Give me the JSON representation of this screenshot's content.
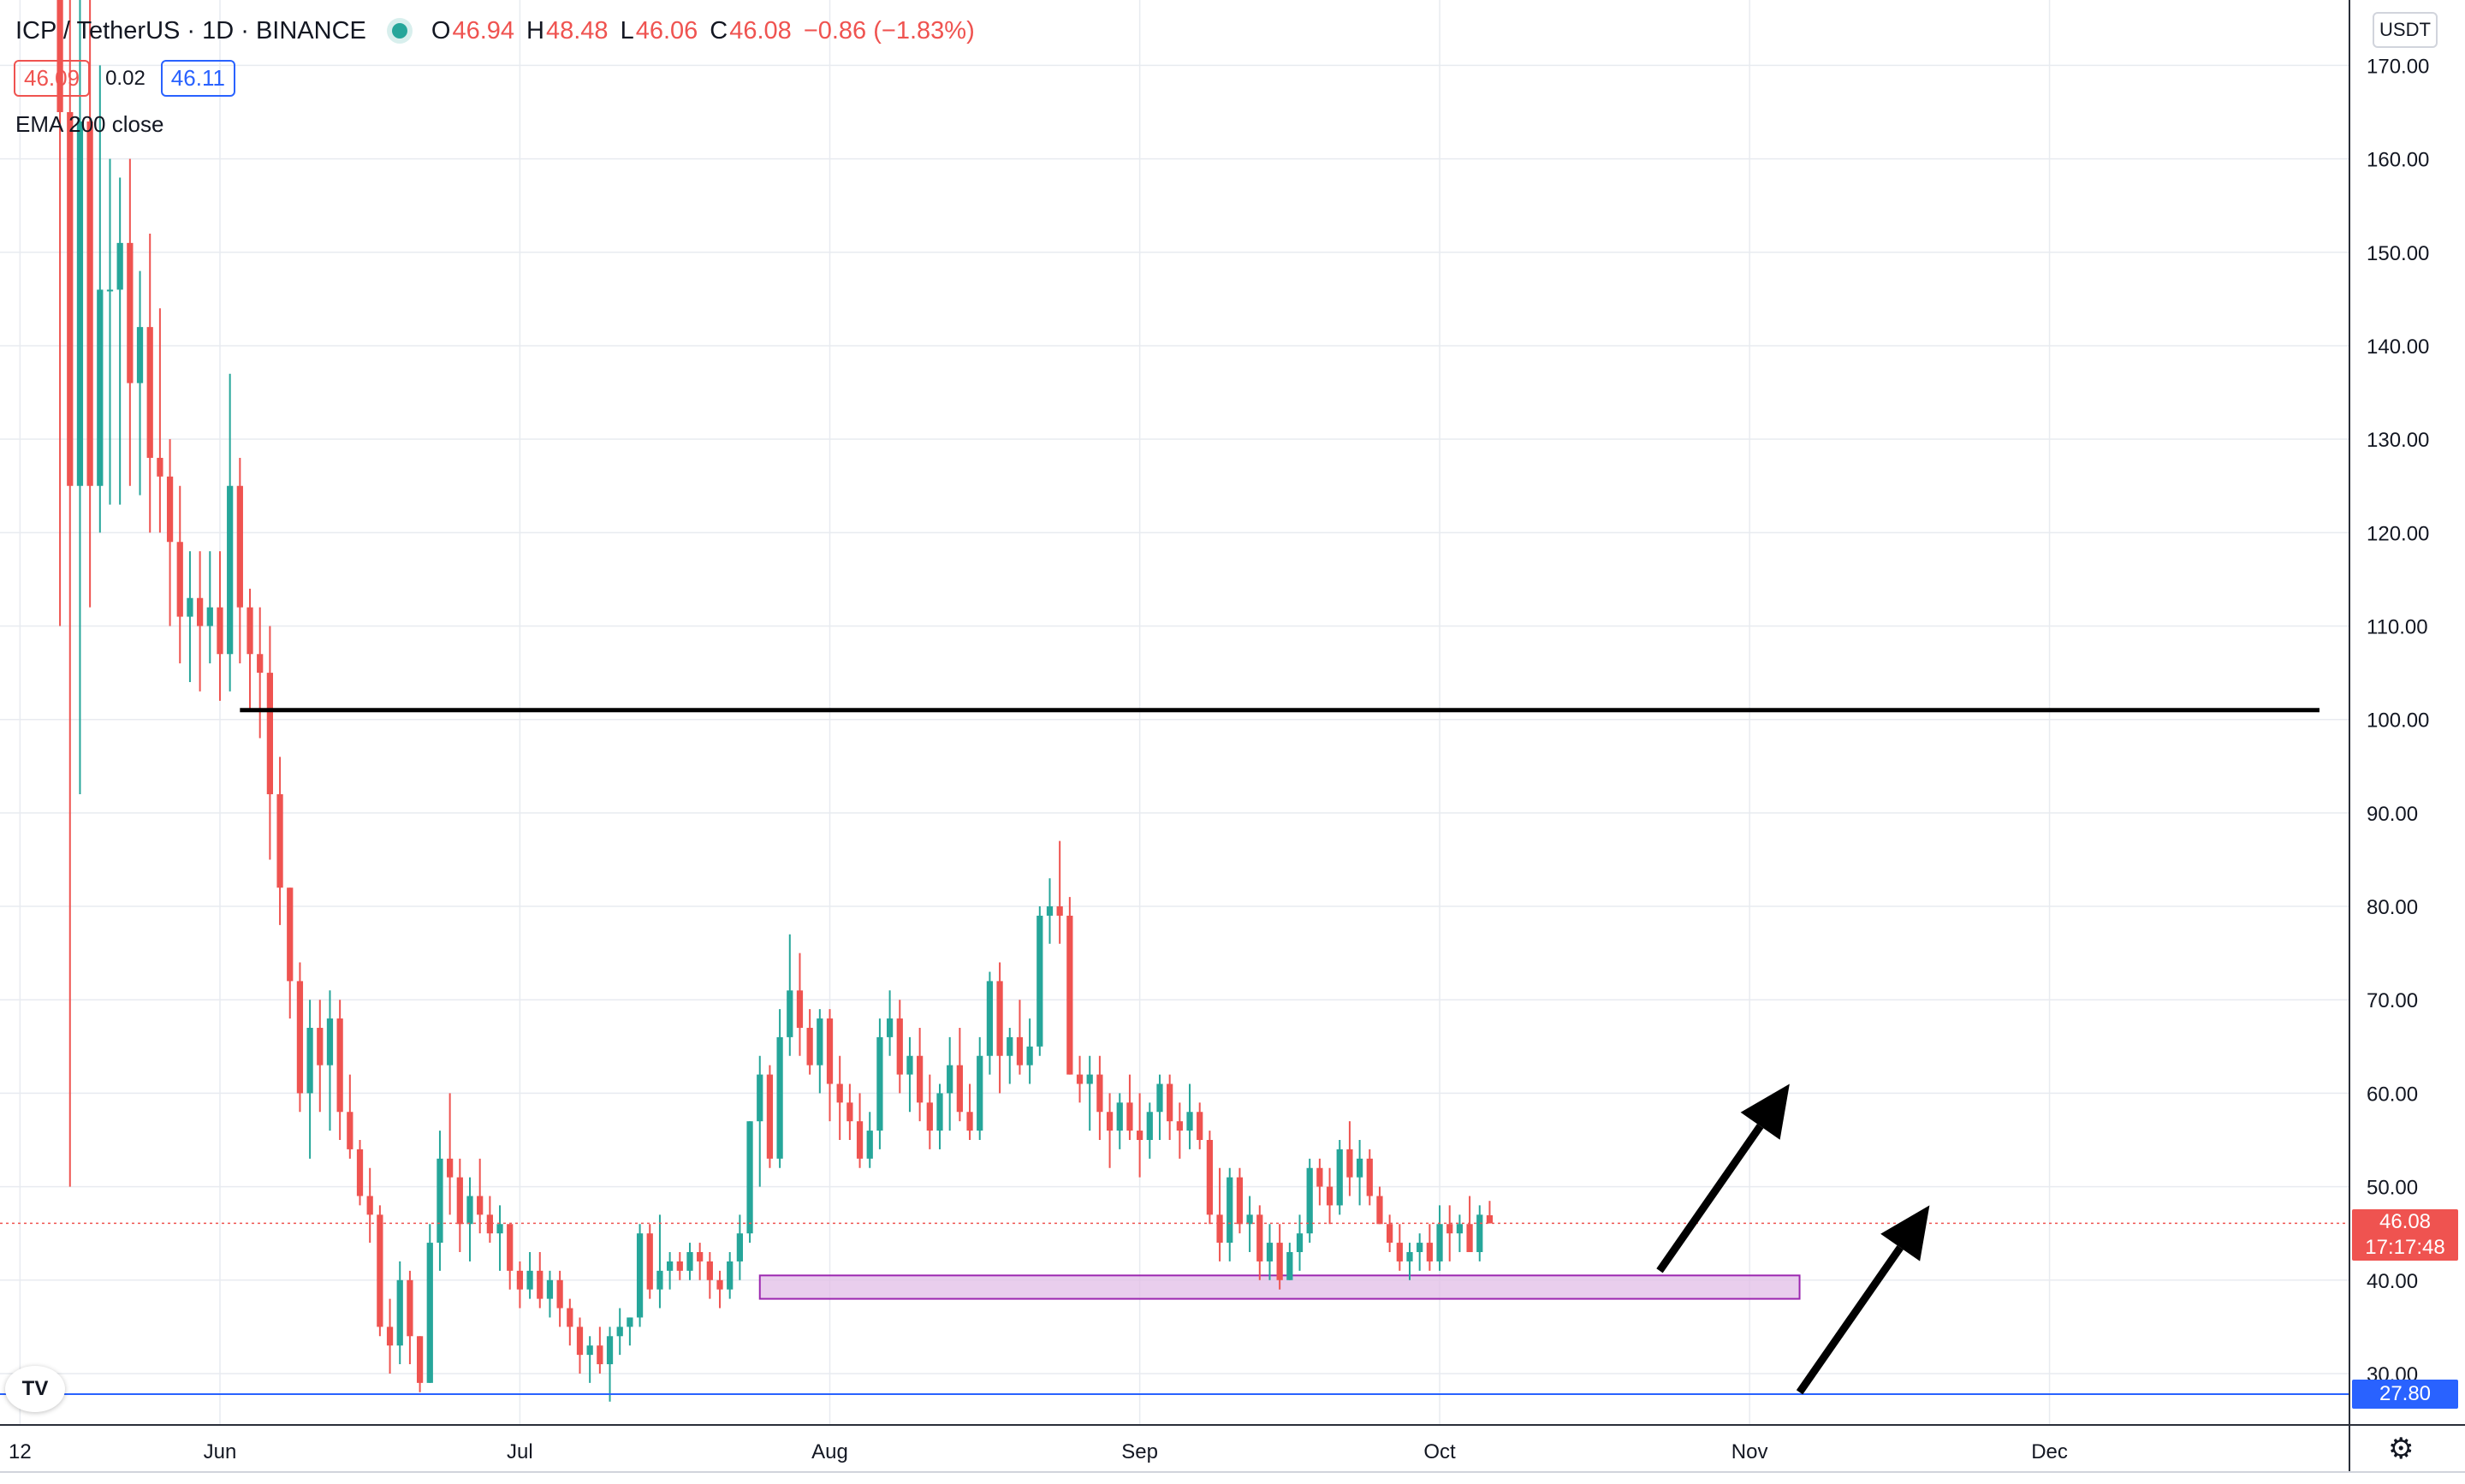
{
  "header": {
    "symbol": "ICP / TetherUS · 1D · BINANCE",
    "status_color": "#26a69a",
    "ohlc": {
      "o_label": "O",
      "o_value": "46.94",
      "h_label": "H",
      "h_value": "48.48",
      "l_label": "L",
      "l_value": "46.06",
      "c_label": "C",
      "c_value": "46.08",
      "change": "−0.86 (−1.83%)"
    },
    "bid": "46.09",
    "spread": "0.02",
    "ask": "46.11",
    "indicator": "EMA 200 close"
  },
  "currency_button": "USDT",
  "price_tag": {
    "price": "46.08",
    "countdown": "17:17:48"
  },
  "level_tag": "27.80",
  "logo_text": "TV",
  "settings_icon": "gear-icon",
  "colors": {
    "up": "#26a69a",
    "down": "#ef5350",
    "line": "#2962ff",
    "zone_fill": "#e1bee7",
    "zone_border": "#9c27b0",
    "annotation": "#000000"
  },
  "chart_data": {
    "type": "candlestick",
    "y_axis": {
      "min": 24.5,
      "max": 177,
      "ticks": [
        30,
        40,
        50,
        60,
        70,
        80,
        90,
        100,
        110,
        120,
        130,
        140,
        150,
        160,
        170
      ],
      "tick_labels": [
        "30.00",
        "40.00",
        "50.00",
        "60.00",
        "70.00",
        "80.00",
        "90.00",
        "100.00",
        "110.00",
        "120.00",
        "130.00",
        "140.00",
        "150.00",
        "160.00",
        "170.00"
      ]
    },
    "x_axis": {
      "start": "2021-05-10",
      "end": "2021-12-31",
      "labels": [
        {
          "date": "2021-05-12",
          "text": "12"
        },
        {
          "date": "2021-06-01",
          "text": "Jun"
        },
        {
          "date": "2021-07-01",
          "text": "Jul"
        },
        {
          "date": "2021-08-01",
          "text": "Aug"
        },
        {
          "date": "2021-09-01",
          "text": "Sep"
        },
        {
          "date": "2021-10-01",
          "text": "Oct"
        },
        {
          "date": "2021-11-01",
          "text": "Nov"
        },
        {
          "date": "2021-12-01",
          "text": "Dec"
        }
      ]
    },
    "first_candle_date": "2021-05-16",
    "candles": [
      [
        180,
        230,
        110,
        165
      ],
      [
        165,
        230,
        50,
        125
      ],
      [
        125,
        225,
        92,
        164
      ],
      [
        164,
        215,
        112,
        125
      ],
      [
        125,
        170,
        120,
        146
      ],
      [
        146,
        160,
        123,
        146
      ],
      [
        146,
        158,
        123,
        151
      ],
      [
        151,
        160,
        125,
        136
      ],
      [
        136,
        148,
        124,
        142
      ],
      [
        142,
        152,
        120,
        128
      ],
      [
        128,
        144,
        120,
        126
      ],
      [
        126,
        130,
        110,
        119
      ],
      [
        119,
        125,
        106,
        111
      ],
      [
        111,
        118,
        104,
        113
      ],
      [
        113,
        118,
        103,
        110
      ],
      [
        110,
        118,
        106,
        112
      ],
      [
        112,
        118,
        102,
        107
      ],
      [
        107,
        137,
        103,
        125
      ],
      [
        125,
        128,
        106,
        112
      ],
      [
        112,
        114,
        101,
        107
      ],
      [
        107,
        112,
        98,
        105
      ],
      [
        105,
        110,
        85,
        92
      ],
      [
        92,
        96,
        78,
        82
      ],
      [
        82,
        82,
        68,
        72
      ],
      [
        72,
        74,
        58,
        60
      ],
      [
        60,
        70,
        53,
        67
      ],
      [
        67,
        70,
        58,
        63
      ],
      [
        63,
        71,
        56,
        68
      ],
      [
        68,
        70,
        55,
        58
      ],
      [
        58,
        62,
        53,
        54
      ],
      [
        54,
        55,
        48,
        49
      ],
      [
        49,
        52,
        44,
        47
      ],
      [
        47,
        48,
        34,
        35
      ],
      [
        35,
        38,
        30,
        33
      ],
      [
        33,
        42,
        31,
        40
      ],
      [
        40,
        41,
        31,
        34
      ],
      [
        34,
        34,
        28,
        29
      ],
      [
        29,
        46,
        29,
        44
      ],
      [
        44,
        56,
        41,
        53
      ],
      [
        53,
        60,
        47,
        51
      ],
      [
        51,
        53,
        43,
        46
      ],
      [
        46,
        51,
        42,
        49
      ],
      [
        49,
        53,
        45,
        47
      ],
      [
        47,
        49,
        44,
        45
      ],
      [
        45,
        48,
        41,
        46
      ],
      [
        46,
        46,
        39,
        41
      ],
      [
        41,
        42,
        37,
        39
      ],
      [
        39,
        43,
        38,
        41
      ],
      [
        41,
        43,
        37,
        38
      ],
      [
        38,
        41,
        36,
        40
      ],
      [
        40,
        41,
        35,
        37
      ],
      [
        37,
        38,
        33,
        35
      ],
      [
        35,
        36,
        30,
        32
      ],
      [
        32,
        34,
        29,
        33
      ],
      [
        33,
        35,
        30,
        31
      ],
      [
        31,
        35,
        27,
        34
      ],
      [
        34,
        37,
        32,
        35
      ],
      [
        35,
        36,
        33,
        36
      ],
      [
        36,
        46,
        35,
        45
      ],
      [
        45,
        46,
        38,
        39
      ],
      [
        39,
        47,
        37,
        41
      ],
      [
        41,
        43,
        39,
        42
      ],
      [
        42,
        43,
        40,
        41
      ],
      [
        41,
        44,
        40,
        43
      ],
      [
        43,
        44,
        40,
        42
      ],
      [
        42,
        43,
        38,
        40
      ],
      [
        40,
        41,
        37,
        39
      ],
      [
        39,
        43,
        38,
        42
      ],
      [
        42,
        47,
        40,
        45
      ],
      [
        45,
        57,
        44,
        57
      ],
      [
        57,
        64,
        50,
        62
      ],
      [
        62,
        63,
        52,
        53
      ],
      [
        53,
        69,
        52,
        66
      ],
      [
        66,
        77,
        64,
        71
      ],
      [
        71,
        75,
        64,
        67
      ],
      [
        67,
        69,
        62,
        63
      ],
      [
        63,
        69,
        60,
        68
      ],
      [
        68,
        69,
        57,
        61
      ],
      [
        61,
        64,
        55,
        59
      ],
      [
        59,
        61,
        55,
        57
      ],
      [
        57,
        60,
        52,
        53
      ],
      [
        53,
        58,
        52,
        56
      ],
      [
        56,
        68,
        54,
        66
      ],
      [
        66,
        71,
        64,
        68
      ],
      [
        68,
        70,
        60,
        62
      ],
      [
        62,
        66,
        58,
        64
      ],
      [
        64,
        67,
        57,
        59
      ],
      [
        59,
        62,
        54,
        56
      ],
      [
        56,
        61,
        54,
        60
      ],
      [
        60,
        66,
        56,
        63
      ],
      [
        63,
        67,
        57,
        58
      ],
      [
        58,
        61,
        55,
        56
      ],
      [
        56,
        66,
        55,
        64
      ],
      [
        64,
        73,
        62,
        72
      ],
      [
        72,
        74,
        60,
        64
      ],
      [
        64,
        67,
        61,
        66
      ],
      [
        66,
        70,
        62,
        63
      ],
      [
        63,
        68,
        61,
        65
      ],
      [
        65,
        80,
        64,
        79
      ],
      [
        79,
        83,
        76,
        80
      ],
      [
        80,
        87,
        76,
        79
      ],
      [
        79,
        81,
        62,
        62
      ],
      [
        62,
        64,
        59,
        61
      ],
      [
        61,
        64,
        56,
        62
      ],
      [
        62,
        64,
        55,
        58
      ],
      [
        58,
        60,
        52,
        56
      ],
      [
        56,
        60,
        54,
        59
      ],
      [
        59,
        62,
        55,
        56
      ],
      [
        56,
        60,
        51,
        55
      ],
      [
        55,
        59,
        53,
        58
      ],
      [
        58,
        62,
        55,
        61
      ],
      [
        61,
        62,
        55,
        57
      ],
      [
        57,
        59,
        53,
        56
      ],
      [
        56,
        61,
        54,
        58
      ],
      [
        58,
        59,
        54,
        55
      ],
      [
        55,
        56,
        46,
        47
      ],
      [
        47,
        52,
        42,
        44
      ],
      [
        44,
        52,
        42,
        51
      ],
      [
        51,
        52,
        45,
        46
      ],
      [
        46,
        49,
        43,
        47
      ],
      [
        47,
        48,
        40,
        42
      ],
      [
        42,
        46,
        40,
        44
      ],
      [
        44,
        46,
        39,
        40
      ],
      [
        40,
        44,
        40,
        43
      ],
      [
        43,
        47,
        41,
        45
      ],
      [
        45,
        53,
        44,
        52
      ],
      [
        52,
        53,
        48,
        50
      ],
      [
        50,
        52,
        46,
        48
      ],
      [
        48,
        55,
        47,
        54
      ],
      [
        54,
        57,
        49,
        51
      ],
      [
        51,
        55,
        48,
        53
      ],
      [
        53,
        54,
        48,
        49
      ],
      [
        49,
        50,
        46,
        46
      ],
      [
        46,
        47,
        43,
        44
      ],
      [
        44,
        46,
        41,
        42
      ],
      [
        42,
        44,
        40,
        43
      ],
      [
        43,
        45,
        41,
        44
      ],
      [
        44,
        46,
        41,
        42
      ],
      [
        42,
        48,
        41,
        46
      ],
      [
        46,
        48,
        42,
        45
      ],
      [
        45,
        47,
        43,
        46
      ],
      [
        46,
        49,
        43,
        43
      ],
      [
        43,
        48,
        42,
        47
      ],
      [
        46.94,
        48.48,
        46.06,
        46.08
      ]
    ],
    "ema200_line": 27.8,
    "current_price": 46.08,
    "annotations": {
      "resistance_line": {
        "price": 101,
        "from": "2021-06-03",
        "to": "2021-12-28"
      },
      "support_zone": {
        "low": 38,
        "high": 40.5,
        "from": "2021-07-25",
        "to": "2021-11-06"
      },
      "arrows": [
        {
          "from": [
            "2021-10-23",
            41
          ],
          "to": [
            "2021-11-05",
            61
          ]
        },
        {
          "from": [
            "2021-11-06",
            28
          ],
          "to": [
            "2021-11-19",
            48
          ]
        }
      ]
    }
  }
}
